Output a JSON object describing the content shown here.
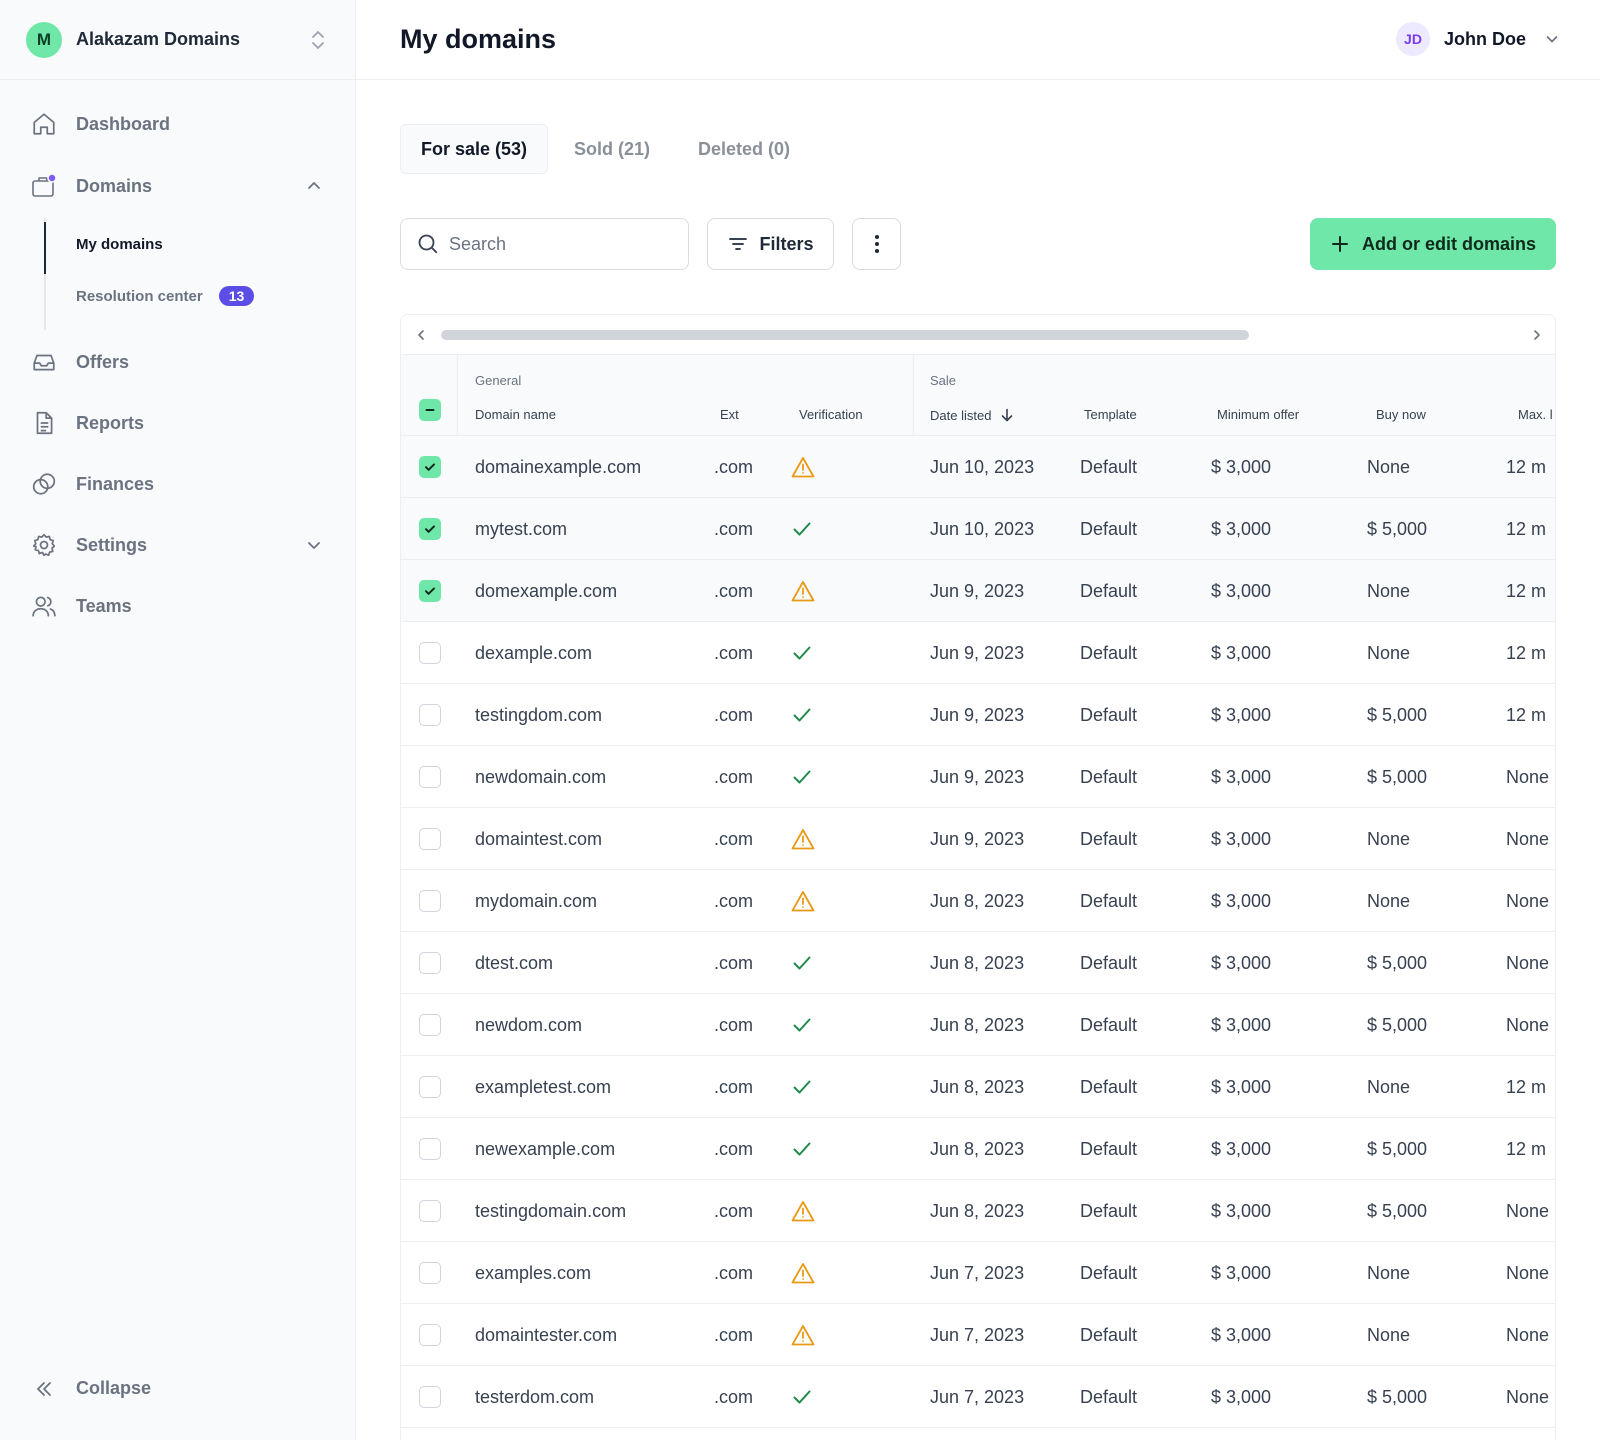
{
  "brand": {
    "initial": "M",
    "name": "Alakazam Domains"
  },
  "nav": {
    "dashboard": "Dashboard",
    "domains": "Domains",
    "my_domains": "My domains",
    "resolution_center": "Resolution center",
    "resolution_badge": "13",
    "offers": "Offers",
    "reports": "Reports",
    "finances": "Finances",
    "settings": "Settings",
    "teams": "Teams",
    "collapse": "Collapse"
  },
  "header": {
    "title": "My domains",
    "user_initials": "JD",
    "user_name": "John Doe"
  },
  "tabs": {
    "for_sale": "For sale (53)",
    "sold": "Sold (21)",
    "deleted": "Deleted (0)"
  },
  "toolbar": {
    "search_placeholder": "Search",
    "filters": "Filters",
    "add": "Add or edit domains"
  },
  "table": {
    "groups": {
      "general": "General",
      "sale": "Sale"
    },
    "columns": {
      "domain": "Domain name",
      "ext": "Ext",
      "verification": "Verification",
      "date_listed": "Date listed",
      "template": "Template",
      "min_offer": "Minimum offer",
      "buy_now": "Buy now",
      "max": "Max. l"
    },
    "rows": [
      {
        "domain": "domainexample.com",
        "ext": ".com",
        "verification": "warning",
        "date": "Jun 10, 2023",
        "template": "Default",
        "min_offer": "$ 3,000",
        "buy_now": "None",
        "max": "12 m",
        "selected": true
      },
      {
        "domain": "mytest.com",
        "ext": ".com",
        "verification": "verified",
        "date": "Jun 10, 2023",
        "template": "Default",
        "min_offer": "$ 3,000",
        "buy_now": "$ 5,000",
        "max": "12 m",
        "selected": true
      },
      {
        "domain": "domexample.com",
        "ext": ".com",
        "verification": "warning",
        "date": "Jun 9, 2023",
        "template": "Default",
        "min_offer": "$ 3,000",
        "buy_now": "None",
        "max": "12 m",
        "selected": true
      },
      {
        "domain": "dexample.com",
        "ext": ".com",
        "verification": "verified",
        "date": "Jun 9, 2023",
        "template": "Default",
        "min_offer": "$ 3,000",
        "buy_now": "None",
        "max": "12 m",
        "selected": false
      },
      {
        "domain": "testingdom.com",
        "ext": ".com",
        "verification": "verified",
        "date": "Jun 9, 2023",
        "template": "Default",
        "min_offer": "$ 3,000",
        "buy_now": "$ 5,000",
        "max": "12 m",
        "selected": false
      },
      {
        "domain": "newdomain.com",
        "ext": ".com",
        "verification": "verified",
        "date": "Jun 9, 2023",
        "template": "Default",
        "min_offer": "$ 3,000",
        "buy_now": "$ 5,000",
        "max": "None",
        "selected": false
      },
      {
        "domain": "domaintest.com",
        "ext": ".com",
        "verification": "warning",
        "date": "Jun 9, 2023",
        "template": "Default",
        "min_offer": "$ 3,000",
        "buy_now": "None",
        "max": "None",
        "selected": false
      },
      {
        "domain": "mydomain.com",
        "ext": ".com",
        "verification": "warning",
        "date": "Jun 8, 2023",
        "template": "Default",
        "min_offer": "$ 3,000",
        "buy_now": "None",
        "max": "None",
        "selected": false
      },
      {
        "domain": "dtest.com",
        "ext": ".com",
        "verification": "verified",
        "date": "Jun 8, 2023",
        "template": "Default",
        "min_offer": "$ 3,000",
        "buy_now": "$ 5,000",
        "max": "None",
        "selected": false
      },
      {
        "domain": "newdom.com",
        "ext": ".com",
        "verification": "verified",
        "date": "Jun 8, 2023",
        "template": "Default",
        "min_offer": "$ 3,000",
        "buy_now": "$ 5,000",
        "max": "None",
        "selected": false
      },
      {
        "domain": "exampletest.com",
        "ext": ".com",
        "verification": "verified",
        "date": "Jun 8, 2023",
        "template": "Default",
        "min_offer": "$ 3,000",
        "buy_now": "None",
        "max": "12 m",
        "selected": false
      },
      {
        "domain": "newexample.com",
        "ext": ".com",
        "verification": "verified",
        "date": "Jun 8, 2023",
        "template": "Default",
        "min_offer": "$ 3,000",
        "buy_now": "$ 5,000",
        "max": "12 m",
        "selected": false
      },
      {
        "domain": "testingdomain.com",
        "ext": ".com",
        "verification": "warning",
        "date": "Jun 8, 2023",
        "template": "Default",
        "min_offer": "$ 3,000",
        "buy_now": "$ 5,000",
        "max": "None",
        "selected": false
      },
      {
        "domain": "examples.com",
        "ext": ".com",
        "verification": "warning",
        "date": "Jun 7, 2023",
        "template": "Default",
        "min_offer": "$ 3,000",
        "buy_now": "None",
        "max": "None",
        "selected": false
      },
      {
        "domain": "domaintester.com",
        "ext": ".com",
        "verification": "warning",
        "date": "Jun 7, 2023",
        "template": "Default",
        "min_offer": "$ 3,000",
        "buy_now": "None",
        "max": "None",
        "selected": false
      },
      {
        "domain": "testerdom.com",
        "ext": ".com",
        "verification": "verified",
        "date": "Jun 7, 2023",
        "template": "Default",
        "min_offer": "$ 3,000",
        "buy_now": "$ 5,000",
        "max": "None",
        "selected": false
      }
    ]
  },
  "colors": {
    "accent_green": "#6ee7a8",
    "badge_purple": "#5b4ee6",
    "warning": "#e89a14",
    "verified": "#1f8a4c"
  }
}
